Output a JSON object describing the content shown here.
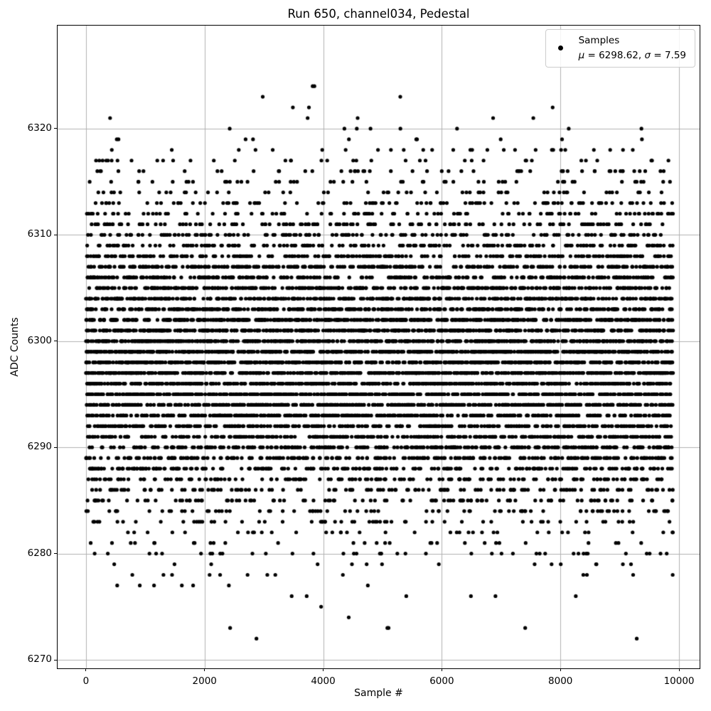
{
  "figure": {
    "background": "#ffffff",
    "text_color": "#000000"
  },
  "chart_data": {
    "type": "scatter",
    "title": "Run 650, channel034, Pedestal",
    "xlabel": "Sample #",
    "ylabel": "ADC Counts",
    "xlim": [
      -478,
      10347
    ],
    "ylim": [
      6269.2,
      6329.7
    ],
    "xticks": [
      0,
      2000,
      4000,
      6000,
      8000,
      10000
    ],
    "yticks": [
      6270,
      6280,
      6290,
      6300,
      6310,
      6320
    ],
    "grid": true,
    "grid_color": "#b0b0b0",
    "spine_color": "#000000",
    "legend": {
      "position": "upper right",
      "series_label": "Samples",
      "stats_label": "μ = 6298.62, σ = 7.59",
      "mu_symbol": "μ",
      "mu_rest": " = 6298.62, ",
      "sigma_symbol": "σ",
      "sigma_rest": " = 7.59",
      "marker_color": "#000000"
    },
    "series": [
      {
        "name": "Samples",
        "marker": "point",
        "color": "#000000",
        "marker_radius_px": 2.6,
        "n_points": 9900,
        "x_start": 0,
        "x_end": 9899,
        "y_distribution": {
          "type": "gaussian-rounded-to-integer",
          "mean": 6298.62,
          "sigma": 7.59,
          "min": 6272,
          "max": 6327
        }
      }
    ]
  }
}
